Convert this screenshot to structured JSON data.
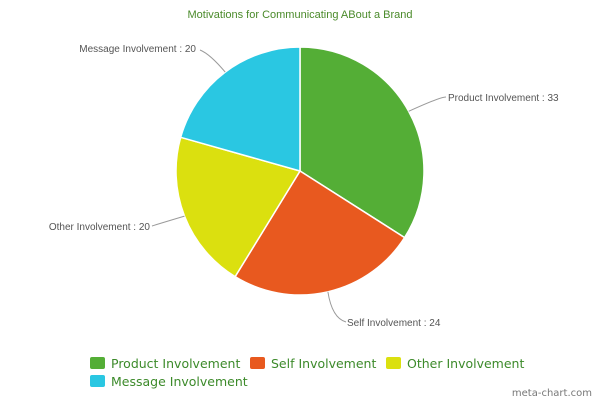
{
  "chart_data": {
    "type": "pie",
    "title": "Motivations for Communicating ABout a Brand",
    "categories": [
      "Product Involvement",
      "Self Involvement",
      "Other Involvement",
      "Message Involvement"
    ],
    "values": [
      33,
      24,
      20,
      20
    ],
    "colors": [
      "#54ae36",
      "#e8591f",
      "#dbe00f",
      "#2ac7e2"
    ],
    "labels": [
      "Product Involvement : 33",
      "Self Involvement : 24",
      "Other Involvement : 20",
      "Message Involvement : 20"
    ],
    "legend_placement": "bottom",
    "start_angle": "12 o'clock, clockwise"
  },
  "watermark": "meta-chart.com"
}
